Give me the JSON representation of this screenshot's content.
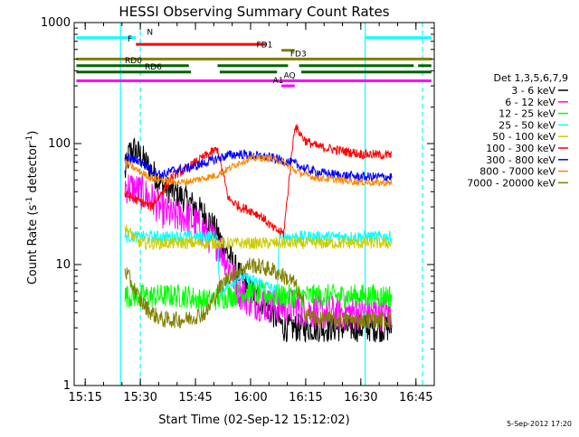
{
  "chart_data": {
    "type": "line",
    "title": "HESSI Observing Summary Count Rates",
    "xlabel": "Start Time (02-Sep-12 15:12:02)",
    "ylabel": "Count Rate (s⁻¹ detector⁻¹)",
    "ylabel_parts": {
      "prefix": "Count Rate (s",
      "sup1": "-1",
      "middle": " detector",
      "sup2": "-1",
      "suffix": ")"
    },
    "footer": "5-Sep-2012 17:20",
    "x_scale": "time-minutes",
    "xlim": [
      15.2,
      16.833
    ],
    "y_scale": "log",
    "ylim": [
      1,
      1000
    ],
    "x_ticks": [
      {
        "v": 15.25,
        "label": "15:15"
      },
      {
        "v": 15.5,
        "label": "15:30"
      },
      {
        "v": 15.75,
        "label": "15:45"
      },
      {
        "v": 16.0,
        "label": "16:00"
      },
      {
        "v": 16.25,
        "label": "16:15"
      },
      {
        "v": 16.5,
        "label": "16:30"
      },
      {
        "v": 16.75,
        "label": "16:45"
      }
    ],
    "y_ticks": [
      {
        "v": 1,
        "label": "1"
      },
      {
        "v": 10,
        "label": "10"
      },
      {
        "v": 100,
        "label": "100"
      },
      {
        "v": 1000,
        "label": "1000"
      }
    ],
    "legend": {
      "header": "Det 1,3,5,6,7,9",
      "placement": "right",
      "entries": [
        {
          "label": "3 - 6 keV",
          "color": "#000000"
        },
        {
          "label": "6 - 12 keV",
          "color": "#ff00ff"
        },
        {
          "label": "12 - 25 keV",
          "color": "#00ff00"
        },
        {
          "label": "25 - 50 keV",
          "color": "#00ffff"
        },
        {
          "label": "50 - 100 keV",
          "color": "#cccc00"
        },
        {
          "label": "100 - 300 keV",
          "color": "#ff0000"
        },
        {
          "label": "300 - 800 keV",
          "color": "#0000ff"
        },
        {
          "label": "800 - 7000 keV",
          "color": "#ff8800"
        },
        {
          "label": "7000 - 20000 keV",
          "color": "#808000"
        }
      ]
    },
    "flag_bars": [
      {
        "label": "N",
        "color": "#00ffff",
        "y": 750,
        "segments": [
          [
            15.21,
            15.48
          ],
          [
            16.52,
            16.82
          ]
        ]
      },
      {
        "label": "F",
        "color": "#ff0000",
        "y": 660,
        "segments": [
          [
            15.48,
            16.07
          ]
        ]
      },
      {
        "label": "FD1",
        "color": "#808000",
        "y": 590,
        "segments": [
          [
            16.14,
            16.2
          ]
        ]
      },
      {
        "label": "FD3",
        "color": "#808000",
        "y": 500,
        "segments": [
          [
            15.21,
            16.82
          ]
        ]
      },
      {
        "label": "RD0",
        "color": "#006400",
        "y": 440,
        "segments": [
          [
            15.21,
            15.72
          ],
          [
            15.85,
            16.17
          ],
          [
            16.22,
            16.74
          ],
          [
            16.76,
            16.82
          ]
        ]
      },
      {
        "label": "RD6",
        "color": "#006400",
        "y": 390,
        "segments": [
          [
            15.21,
            15.73
          ],
          [
            15.86,
            16.12
          ],
          [
            16.23,
            16.82
          ]
        ]
      },
      {
        "label": "AQ",
        "color": "#ff00ff",
        "y": 330,
        "segments": [
          [
            15.21,
            16.82
          ]
        ]
      },
      {
        "label": "A1",
        "color": "#ff00ff",
        "y": 300,
        "segments": [
          [
            16.14,
            16.2
          ]
        ]
      }
    ],
    "vlines": [
      {
        "x": 15.41,
        "color": "#00ffff",
        "style": "solid"
      },
      {
        "x": 15.5,
        "color": "#00ffff",
        "style": "dashed"
      },
      {
        "x": 16.52,
        "color": "#00ffff",
        "style": "solid"
      },
      {
        "x": 16.78,
        "color": "#00ffff",
        "style": "dashed"
      }
    ],
    "x_start": 15.43,
    "x_end": 16.64,
    "series": [
      {
        "name": "3 - 6 keV",
        "color": "#000000",
        "noise": 0.12,
        "points": [
          [
            15.43,
            55
          ],
          [
            15.45,
            85
          ],
          [
            15.47,
            90
          ],
          [
            15.5,
            80
          ],
          [
            15.55,
            60
          ],
          [
            15.6,
            45
          ],
          [
            15.65,
            40
          ],
          [
            15.7,
            35
          ],
          [
            15.75,
            30
          ],
          [
            15.8,
            25
          ],
          [
            15.85,
            18
          ],
          [
            15.9,
            12
          ],
          [
            15.95,
            8
          ],
          [
            16.0,
            6
          ],
          [
            16.05,
            5
          ],
          [
            16.1,
            4
          ],
          [
            16.15,
            3
          ],
          [
            16.2,
            3
          ],
          [
            16.25,
            3
          ],
          [
            16.3,
            3
          ],
          [
            16.4,
            3
          ],
          [
            16.5,
            3
          ],
          [
            16.64,
            3
          ]
        ]
      },
      {
        "name": "6 - 12 keV",
        "color": "#ff00ff",
        "noise": 0.15,
        "points": [
          [
            15.43,
            45
          ],
          [
            15.5,
            40
          ],
          [
            15.55,
            35
          ],
          [
            15.6,
            28
          ],
          [
            15.65,
            25
          ],
          [
            15.7,
            25
          ],
          [
            15.75,
            22
          ],
          [
            15.8,
            18
          ],
          [
            15.85,
            15
          ],
          [
            15.9,
            10
          ],
          [
            15.95,
            6
          ],
          [
            16.0,
            5
          ],
          [
            16.1,
            4.5
          ],
          [
            16.2,
            4.5
          ],
          [
            16.3,
            4
          ],
          [
            16.4,
            4
          ],
          [
            16.5,
            4
          ],
          [
            16.64,
            4
          ]
        ]
      },
      {
        "name": "12 - 25 keV",
        "color": "#00ff00",
        "noise": 0.1,
        "points": [
          [
            15.43,
            5.5
          ],
          [
            15.5,
            5.5
          ],
          [
            15.6,
            5.5
          ],
          [
            15.7,
            5.5
          ],
          [
            15.8,
            5.0
          ],
          [
            15.9,
            5.5
          ],
          [
            16.0,
            6.0
          ],
          [
            16.1,
            5.5
          ],
          [
            16.2,
            5.5
          ],
          [
            16.3,
            5.5
          ],
          [
            16.4,
            5.5
          ],
          [
            16.5,
            5.5
          ],
          [
            16.64,
            5.5
          ]
        ]
      },
      {
        "name": "25 - 50 keV",
        "color": "#00ffff",
        "noise": 0.05,
        "points": [
          [
            15.43,
            17
          ],
          [
            15.5,
            17
          ],
          [
            15.6,
            17
          ],
          [
            15.7,
            17
          ],
          [
            15.85,
            17
          ],
          [
            15.86,
            6
          ],
          [
            15.95,
            8
          ],
          [
            16.05,
            7
          ],
          [
            16.12,
            6
          ],
          [
            16.13,
            17
          ],
          [
            16.2,
            17
          ],
          [
            16.3,
            17
          ],
          [
            16.4,
            17
          ],
          [
            16.5,
            17
          ],
          [
            16.64,
            17
          ]
        ]
      },
      {
        "name": "50 - 100 keV",
        "color": "#cccc00",
        "noise": 0.05,
        "points": [
          [
            15.43,
            20
          ],
          [
            15.5,
            15
          ],
          [
            15.6,
            15
          ],
          [
            15.7,
            15
          ],
          [
            15.85,
            15
          ],
          [
            15.9,
            15
          ],
          [
            16.0,
            15
          ],
          [
            16.1,
            15
          ],
          [
            16.2,
            15
          ],
          [
            16.3,
            15
          ],
          [
            16.4,
            15
          ],
          [
            16.5,
            15
          ],
          [
            16.64,
            15
          ]
        ]
      },
      {
        "name": "100 - 300 keV",
        "color": "#ff0000",
        "noise": 0.04,
        "points": [
          [
            15.43,
            38
          ],
          [
            15.5,
            33
          ],
          [
            15.55,
            30
          ],
          [
            15.6,
            40
          ],
          [
            15.65,
            55
          ],
          [
            15.7,
            60
          ],
          [
            15.75,
            70
          ],
          [
            15.8,
            80
          ],
          [
            15.85,
            90
          ],
          [
            15.9,
            35
          ],
          [
            15.95,
            30
          ],
          [
            16.0,
            28
          ],
          [
            16.05,
            25
          ],
          [
            16.1,
            20
          ],
          [
            16.15,
            18
          ],
          [
            16.2,
            140
          ],
          [
            16.25,
            105
          ],
          [
            16.3,
            95
          ],
          [
            16.4,
            88
          ],
          [
            16.5,
            82
          ],
          [
            16.64,
            80
          ]
        ]
      },
      {
        "name": "300 - 800 keV",
        "color": "#0000ff",
        "noise": 0.04,
        "points": [
          [
            15.43,
            75
          ],
          [
            15.5,
            72
          ],
          [
            15.55,
            60
          ],
          [
            15.6,
            55
          ],
          [
            15.65,
            60
          ],
          [
            15.7,
            62
          ],
          [
            15.75,
            65
          ],
          [
            15.8,
            70
          ],
          [
            15.85,
            75
          ],
          [
            15.9,
            80
          ],
          [
            15.95,
            82
          ],
          [
            16.0,
            80
          ],
          [
            16.05,
            78
          ],
          [
            16.1,
            76
          ],
          [
            16.15,
            72
          ],
          [
            16.2,
            68
          ],
          [
            16.25,
            62
          ],
          [
            16.3,
            58
          ],
          [
            16.4,
            55
          ],
          [
            16.5,
            53
          ],
          [
            16.64,
            53
          ]
        ]
      },
      {
        "name": "800 - 7000 keV",
        "color": "#ff8800",
        "noise": 0.03,
        "points": [
          [
            15.43,
            70
          ],
          [
            15.5,
            58
          ],
          [
            15.55,
            52
          ],
          [
            15.6,
            50
          ],
          [
            15.65,
            48
          ],
          [
            15.7,
            48
          ],
          [
            15.75,
            50
          ],
          [
            15.85,
            55
          ],
          [
            15.9,
            62
          ],
          [
            15.95,
            70
          ],
          [
            16.0,
            75
          ],
          [
            16.05,
            76
          ],
          [
            16.1,
            75
          ],
          [
            16.15,
            70
          ],
          [
            16.2,
            60
          ],
          [
            16.25,
            55
          ],
          [
            16.3,
            52
          ],
          [
            16.4,
            50
          ],
          [
            16.5,
            48
          ],
          [
            16.64,
            47
          ]
        ]
      },
      {
        "name": "7000 - 20000 keV",
        "color": "#808000",
        "noise": 0.07,
        "points": [
          [
            15.43,
            9
          ],
          [
            15.5,
            5
          ],
          [
            15.55,
            4
          ],
          [
            15.6,
            3.5
          ],
          [
            15.7,
            3.5
          ],
          [
            15.8,
            4
          ],
          [
            15.85,
            6
          ],
          [
            15.9,
            8
          ],
          [
            15.95,
            9
          ],
          [
            16.0,
            10
          ],
          [
            16.05,
            9.5
          ],
          [
            16.1,
            9
          ],
          [
            16.15,
            8
          ],
          [
            16.2,
            7
          ],
          [
            16.25,
            4
          ],
          [
            16.3,
            3.5
          ],
          [
            16.4,
            3.5
          ],
          [
            16.5,
            3.5
          ],
          [
            16.64,
            3.5
          ]
        ]
      }
    ]
  }
}
